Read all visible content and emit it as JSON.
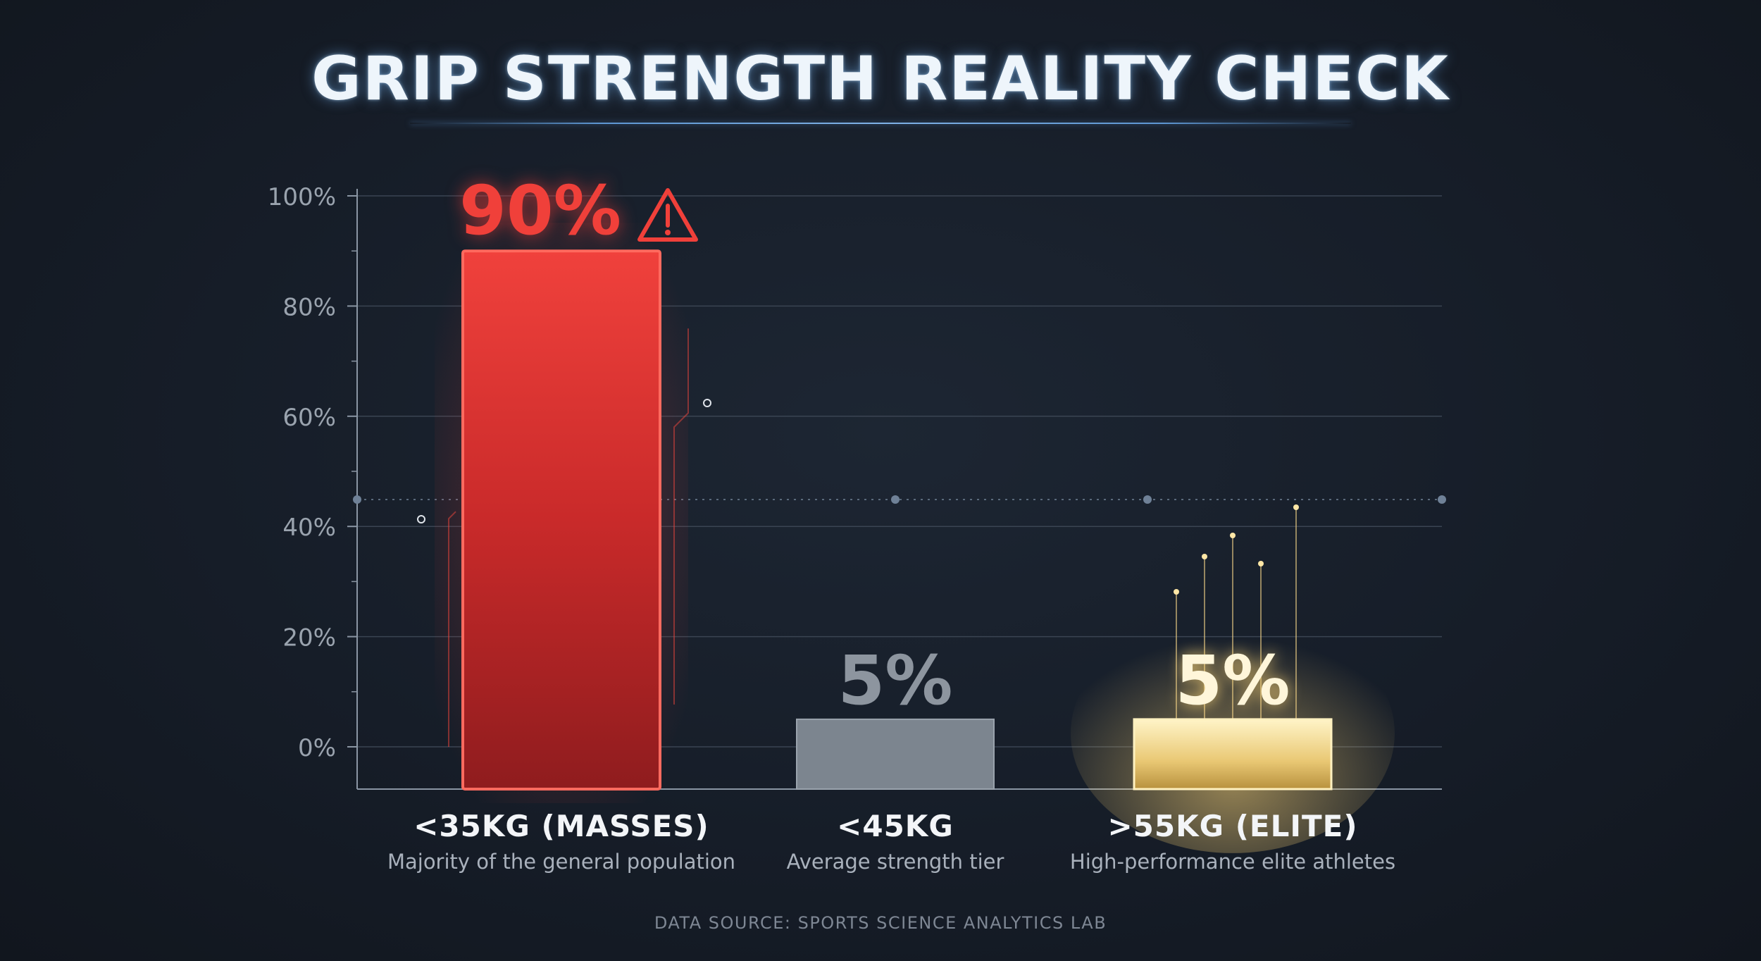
{
  "title": "GRIP STRENGTH REALITY CHECK",
  "source": "DATA SOURCE: SPORTS SCIENCE ANALYTICS LAB",
  "colors": {
    "masses": "#e8302f",
    "average": "#7c858f",
    "elite": "#f2d68a",
    "grid": "#3a4452",
    "axis": "#8a95a3"
  },
  "chart_data": {
    "type": "bar",
    "categories": [
      "<35KG (MASSES)",
      "<45KG",
      ">55KG (ELITE)"
    ],
    "subtitles": [
      "Majority of the general population",
      "Average strength tier",
      "High-performance elite athletes"
    ],
    "values": [
      90,
      5,
      5
    ],
    "value_labels": [
      "90%",
      "5%",
      "5%"
    ],
    "yticks": [
      "0%",
      "20%",
      "40%",
      "60%",
      "80%",
      "100%"
    ],
    "ylim": [
      0,
      100
    ],
    "grid": true,
    "annotations": [
      "warning-icon next to 90%"
    ]
  }
}
